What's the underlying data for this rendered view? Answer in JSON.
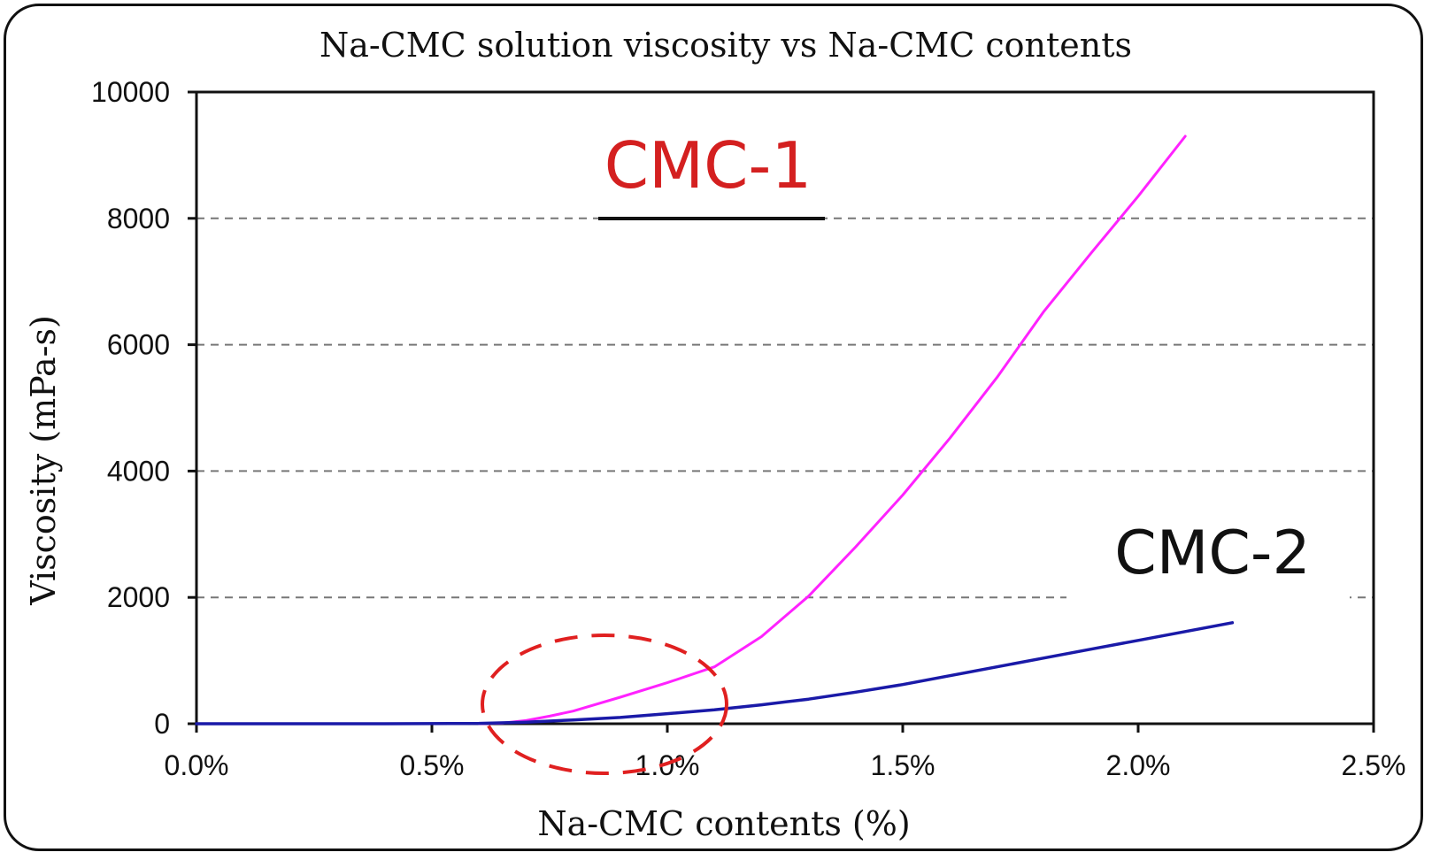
{
  "chart_data": {
    "type": "line",
    "title": "Na-CMC solution viscosity vs Na-CMC contents",
    "xlabel": "Na-CMC contents (%)",
    "ylabel": "Viscosity (mPa-s)",
    "xlim": [
      0,
      2.5
    ],
    "ylim": [
      0,
      10000
    ],
    "x_ticks": [
      0,
      0.5,
      1.0,
      1.5,
      2.0,
      2.5
    ],
    "x_tick_labels": [
      "0.0%",
      "0.5%",
      "1.0%",
      "1.5%",
      "2.0%",
      "2.5%"
    ],
    "y_ticks": [
      0,
      2000,
      4000,
      6000,
      8000,
      10000
    ],
    "y_tick_labels": [
      "0",
      "2000",
      "4000",
      "6000",
      "8000",
      "10000"
    ],
    "grid": "horizontal dashed",
    "series": [
      {
        "name": "CMC-1",
        "color": "#ff22ff",
        "x": [
          0.6,
          0.65,
          0.7,
          0.75,
          0.8,
          0.9,
          1.0,
          1.1,
          1.2,
          1.3,
          1.4,
          1.5,
          1.6,
          1.7,
          1.8,
          1.9,
          2.0,
          2.1
        ],
        "y": [
          0,
          10,
          50,
          120,
          200,
          420,
          650,
          900,
          1380,
          2020,
          2800,
          3620,
          4520,
          5480,
          6530,
          7450,
          8350,
          9300
        ]
      },
      {
        "name": "CMC-2",
        "color": "#1a1aa8",
        "x": [
          0,
          0.2,
          0.4,
          0.6,
          0.7,
          0.8,
          0.9,
          1.0,
          1.1,
          1.2,
          1.3,
          1.4,
          1.5,
          1.6,
          1.7,
          1.8,
          1.9,
          2.0,
          2.1,
          2.2
        ],
        "y": [
          0,
          0,
          0,
          5,
          25,
          60,
          100,
          160,
          220,
          300,
          390,
          500,
          620,
          760,
          900,
          1040,
          1180,
          1320,
          1460,
          1600
        ]
      }
    ],
    "annotations": {
      "cmc1_label": "CMC-1",
      "cmc1_color": "#d42020",
      "cmc2_label": "CMC-2",
      "cmc2_color": "#111111",
      "ellipse_color": "#e02020"
    }
  }
}
